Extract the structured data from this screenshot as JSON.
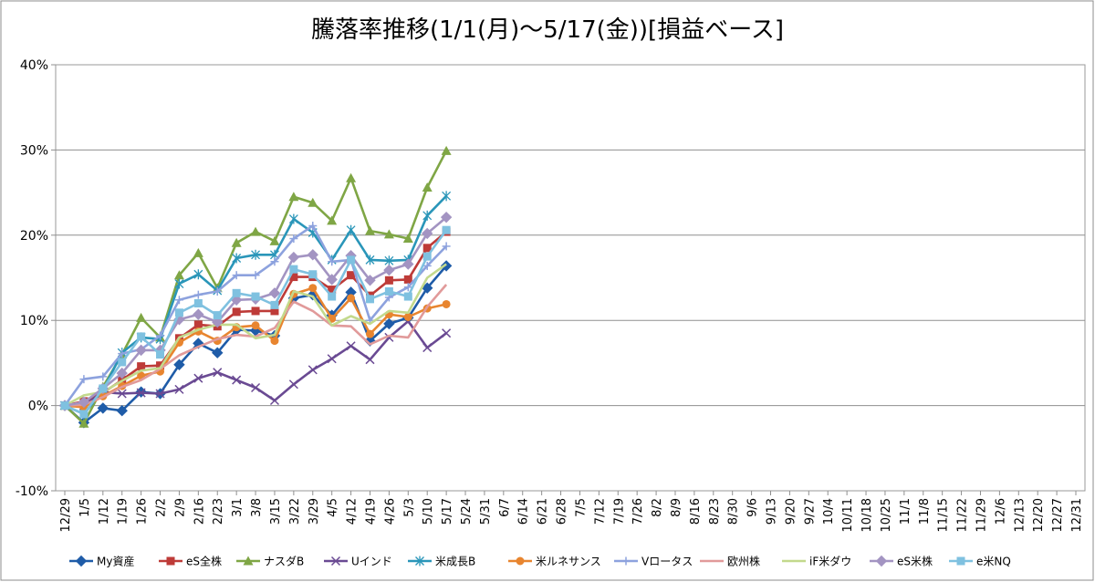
{
  "chart_data": {
    "type": "line",
    "title": "騰落率推移(1/1(月)～5/17(金))[損益ベース]",
    "xlabel": "",
    "ylabel": "",
    "ylim": [
      -10,
      40
    ],
    "yticks": [
      -10,
      0,
      10,
      20,
      30,
      40
    ],
    "ytick_labels": [
      "-10%",
      "0%",
      "10%",
      "20%",
      "30%",
      "40%"
    ],
    "grid": "horizontal",
    "legend_position": "bottom",
    "x_labels": [
      "12/29",
      "1/5",
      "1/12",
      "1/19",
      "1/26",
      "2/2",
      "2/9",
      "2/16",
      "2/23",
      "3/1",
      "3/8",
      "3/15",
      "3/22",
      "3/29",
      "4/5",
      "4/12",
      "4/19",
      "4/26",
      "5/3",
      "5/10",
      "5/17",
      "5/24",
      "5/31",
      "6/7",
      "6/14",
      "6/21",
      "6/28",
      "7/5",
      "7/12",
      "7/19",
      "7/26",
      "8/2",
      "8/9",
      "8/16",
      "8/23",
      "8/30",
      "9/6",
      "9/13",
      "9/20",
      "9/27",
      "10/4",
      "10/11",
      "10/18",
      "10/25",
      "11/1",
      "11/8",
      "11/15",
      "11/22",
      "11/29",
      "12/6",
      "12/13",
      "12/20",
      "12/27",
      "12/31"
    ],
    "series": [
      {
        "name": "My資産",
        "color": "#1f5ca8",
        "marker": "diamond",
        "values": [
          0,
          -2.0,
          -0.3,
          -0.6,
          1.6,
          1.4,
          4.8,
          7.3,
          6.2,
          8.9,
          8.8,
          8.2,
          12.6,
          13.0,
          10.6,
          13.3,
          7.6,
          9.6,
          10.3,
          13.8,
          16.4
        ]
      },
      {
        "name": "eS全株",
        "color": "#be3b38",
        "marker": "square",
        "values": [
          0,
          0.5,
          1.5,
          3.0,
          4.6,
          4.7,
          7.9,
          9.5,
          9.3,
          11.0,
          11.1,
          11.1,
          15.1,
          15.1,
          13.6,
          15.3,
          12.9,
          14.7,
          14.8,
          18.5,
          20.4
        ]
      },
      {
        "name": "ナスダB",
        "color": "#7fa645",
        "marker": "triangle",
        "values": [
          0,
          -2.1,
          2.2,
          6.0,
          10.3,
          8.0,
          15.3,
          17.9,
          13.8,
          19.1,
          20.4,
          19.3,
          24.5,
          23.8,
          21.7,
          26.7,
          20.5,
          20.1,
          19.6,
          25.6,
          29.9
        ]
      },
      {
        "name": "Uインド",
        "color": "#6a4a93",
        "marker": "x",
        "values": [
          0,
          0.0,
          1.6,
          1.4,
          1.5,
          1.4,
          1.9,
          3.2,
          3.9,
          3.0,
          2.1,
          0.6,
          2.5,
          4.2,
          5.5,
          7.0,
          5.4,
          8.0,
          9.9,
          6.8,
          8.5
        ]
      },
      {
        "name": "米成長B",
        "color": "#2a96b9",
        "marker": "asterisk",
        "values": [
          0,
          -1.0,
          1.8,
          6.2,
          8.0,
          7.8,
          14.3,
          15.4,
          13.5,
          17.3,
          17.7,
          17.7,
          21.9,
          20.3,
          17.1,
          20.6,
          17.1,
          17.0,
          17.1,
          22.3,
          24.6
        ]
      },
      {
        "name": "米ルネサンス",
        "color": "#e8852f",
        "marker": "circle",
        "values": [
          0,
          -0.2,
          1.1,
          2.3,
          3.5,
          4.0,
          7.4,
          8.7,
          7.6,
          9.2,
          9.4,
          7.6,
          13.1,
          13.8,
          10.2,
          12.6,
          8.4,
          10.7,
          10.4,
          11.4,
          11.9
        ]
      },
      {
        "name": "Vロータス",
        "color": "#8da2de",
        "marker": "plus",
        "values": [
          0,
          3.1,
          3.4,
          6.1,
          6.6,
          8.2,
          12.4,
          13.0,
          13.4,
          15.3,
          15.3,
          16.9,
          19.6,
          21.1,
          16.9,
          17.1,
          10.0,
          12.7,
          13.9,
          16.4,
          18.7
        ]
      },
      {
        "name": "欧州株",
        "color": "#e19a9a",
        "marker": "none",
        "values": [
          0,
          0.1,
          1.0,
          2.2,
          3.0,
          4.3,
          5.9,
          6.9,
          7.8,
          8.3,
          8.1,
          9.1,
          12.2,
          11.1,
          9.4,
          9.3,
          7.2,
          8.2,
          8.0,
          11.6,
          14.2
        ]
      },
      {
        "name": "iF米ダウ",
        "color": "#c3d98c",
        "marker": "none",
        "values": [
          0,
          1.2,
          1.6,
          2.9,
          4.1,
          4.4,
          8.0,
          8.9,
          9.5,
          9.5,
          7.9,
          8.3,
          13.4,
          12.8,
          9.4,
          10.5,
          9.6,
          11.1,
          10.9,
          15.0,
          16.6
        ]
      },
      {
        "name": "eS米株",
        "color": "#a394c2",
        "marker": "diamond",
        "values": [
          0,
          0.4,
          2.0,
          3.8,
          6.5,
          6.5,
          10.1,
          10.7,
          9.8,
          12.4,
          12.5,
          13.2,
          17.4,
          17.7,
          14.8,
          17.6,
          14.7,
          15.9,
          16.6,
          20.2,
          22.1
        ]
      },
      {
        "name": "e米NQ",
        "color": "#7fc1e0",
        "marker": "square",
        "values": [
          0,
          -1.0,
          2.0,
          5.1,
          8.1,
          6.0,
          10.9,
          12.0,
          10.6,
          13.2,
          12.8,
          11.8,
          16.0,
          15.4,
          12.8,
          17.1,
          12.5,
          13.4,
          12.8,
          17.5,
          20.6
        ]
      }
    ]
  }
}
